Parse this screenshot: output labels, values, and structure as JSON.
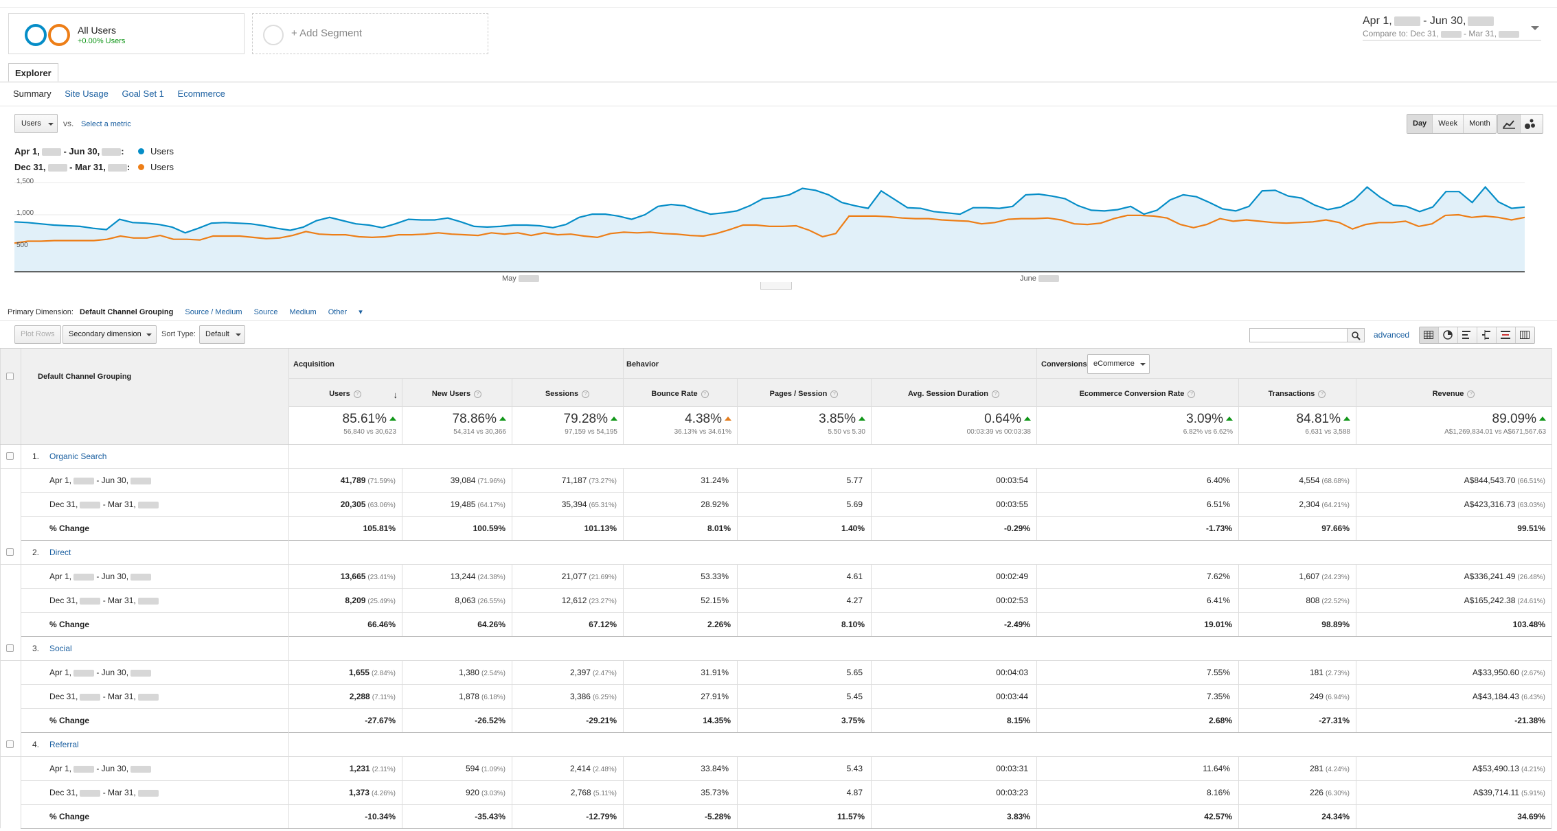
{
  "segments": {
    "all_users": {
      "title": "All Users",
      "subtitle": "+0.00% Users"
    },
    "add_segment": {
      "label": "+ Add Segment"
    }
  },
  "date": {
    "range_start": "Apr 1,",
    "range_sep": " - Jun 30,",
    "compare_prefix": "Compare to: Dec 31,",
    "compare_sep": " - Mar 31,"
  },
  "explorer_tab": "Explorer",
  "subtabs": [
    "Summary",
    "Site Usage",
    "Goal Set 1",
    "Ecommerce"
  ],
  "metric": {
    "selected": "Users",
    "vs": "vs.",
    "select_label": "Select a metric"
  },
  "granularity": [
    "Day",
    "Week",
    "Month"
  ],
  "legend": [
    {
      "range_a": "Apr 1,",
      "range_b": " - Jun 30,",
      "name": "Users",
      "color": "#058dc7"
    },
    {
      "range_a": "Dec 31,",
      "range_b": " - Mar 31,",
      "name": "Users",
      "color": "#ed7e17"
    }
  ],
  "chart_data": {
    "type": "line",
    "y_ticks": [
      "1,500",
      "1,000",
      "500"
    ],
    "ylim": [
      0,
      1500
    ],
    "x_ticks": [
      "May",
      "June"
    ],
    "series": [
      {
        "name": "Users",
        "color": "#058dc7",
        "fill": true,
        "values": [
          890,
          880,
          860,
          840,
          830,
          820,
          790,
          770,
          930,
          880,
          870,
          850,
          810,
          720,
          790,
          870,
          880,
          870,
          860,
          830,
          790,
          760,
          810,
          910,
          960,
          910,
          860,
          840,
          800,
          860,
          930,
          920,
          920,
          950,
          890,
          820,
          810,
          820,
          840,
          840,
          830,
          800,
          850,
          960,
          1010,
          1010,
          980,
          930,
          1000,
          1130,
          1160,
          1140,
          1070,
          1010,
          1030,
          1060,
          1140,
          1250,
          1270,
          1310,
          1410,
          1380,
          1310,
          1190,
          1140,
          1100,
          1370,
          1240,
          1110,
          1100,
          1050,
          1030,
          1010,
          1110,
          1110,
          1100,
          1130,
          1310,
          1320,
          1290,
          1250,
          1140,
          1070,
          1060,
          1080,
          1130,
          1010,
          1070,
          1230,
          1310,
          1280,
          1190,
          1090,
          1060,
          1130,
          1370,
          1380,
          1290,
          1260,
          1150,
          1080,
          1120,
          1230,
          1430,
          1270,
          1150,
          1130,
          1050,
          1120,
          1360,
          1360,
          1190,
          1430,
          1200,
          1100,
          1120
        ]
      },
      {
        "name": "Users",
        "color": "#ed7e17",
        "fill": false,
        "values": [
          560,
          590,
          590,
          600,
          600,
          600,
          600,
          620,
          670,
          640,
          640,
          680,
          620,
          620,
          610,
          670,
          670,
          670,
          650,
          630,
          640,
          680,
          740,
          700,
          690,
          690,
          660,
          650,
          660,
          690,
          690,
          700,
          720,
          700,
          690,
          680,
          720,
          700,
          720,
          680,
          720,
          690,
          700,
          670,
          650,
          710,
          730,
          720,
          730,
          710,
          700,
          680,
          670,
          710,
          770,
          840,
          840,
          820,
          820,
          830,
          760,
          660,
          710,
          980,
          980,
          980,
          970,
          950,
          940,
          940,
          920,
          910,
          900,
          860,
          880,
          930,
          940,
          940,
          950,
          920,
          860,
          850,
          870,
          940,
          990,
          990,
          980,
          950,
          850,
          800,
          850,
          940,
          900,
          920,
          900,
          880,
          870,
          880,
          890,
          920,
          880,
          780,
          850,
          880,
          880,
          900,
          820,
          860,
          990,
          1000,
          960,
          980,
          960,
          920,
          960
        ]
      }
    ]
  },
  "table_controls": {
    "primary_label": "Primary Dimension:",
    "dimensions": [
      "Default Channel Grouping",
      "Source / Medium",
      "Source",
      "Medium",
      "Other"
    ],
    "plot_rows": "Plot Rows",
    "secondary": "Secondary dimension",
    "sort_label": "Sort Type:",
    "sort_value": "Default",
    "advanced": "advanced"
  },
  "table": {
    "dim_header": "Default Channel Grouping",
    "groups": [
      "Acquisition",
      "Behavior",
      "Conversions"
    ],
    "conversion_select": "eCommerce",
    "columns": [
      "Users",
      "New Users",
      "Sessions",
      "Bounce Rate",
      "Pages / Session",
      "Avg. Session Duration",
      "Ecommerce Conversion Rate",
      "Transactions",
      "Revenue"
    ],
    "summary": [
      {
        "big": "85.61%",
        "small": "56,840 vs 30,623",
        "dir": "up"
      },
      {
        "big": "78.86%",
        "small": "54,314 vs 30,366",
        "dir": "up"
      },
      {
        "big": "79.28%",
        "small": "97,159 vs 54,195",
        "dir": "up"
      },
      {
        "big": "4.38%",
        "small": "36.13% vs 34.61%",
        "dir": "up-bad"
      },
      {
        "big": "3.85%",
        "small": "5.50 vs 5.30",
        "dir": "up"
      },
      {
        "big": "0.64%",
        "small": "00:03:39 vs 00:03:38",
        "dir": "up"
      },
      {
        "big": "3.09%",
        "small": "6.82% vs 6.62%",
        "dir": "up"
      },
      {
        "big": "84.81%",
        "small": "6,631 vs 3,588",
        "dir": "up"
      },
      {
        "big": "89.09%",
        "small": "A$1,269,834.01 vs A$671,567.63",
        "dir": "up"
      }
    ],
    "rows": [
      {
        "index": "1.",
        "name": "Organic Search",
        "cur": {
          "label_a": "Apr 1,",
          "label_b": " - Jun 30,",
          "cells": [
            [
              "41,789",
              "(71.59%)"
            ],
            [
              "39,084",
              "(71.96%)"
            ],
            [
              "71,187",
              "(73.27%)"
            ],
            [
              "31.24%",
              ""
            ],
            [
              "5.77",
              ""
            ],
            [
              "00:03:54",
              ""
            ],
            [
              "6.40%",
              ""
            ],
            [
              "4,554",
              "(68.68%)"
            ],
            [
              "A$844,543.70",
              "(66.51%)"
            ]
          ]
        },
        "prev": {
          "label_a": "Dec 31,",
          "label_b": " - Mar 31,",
          "cells": [
            [
              "20,305",
              "(63.06%)"
            ],
            [
              "19,485",
              "(64.17%)"
            ],
            [
              "35,394",
              "(65.31%)"
            ],
            [
              "28.92%",
              ""
            ],
            [
              "5.69",
              ""
            ],
            [
              "00:03:55",
              ""
            ],
            [
              "6.51%",
              ""
            ],
            [
              "2,304",
              "(64.21%)"
            ],
            [
              "A$423,316.73",
              "(63.03%)"
            ]
          ]
        },
        "change": {
          "label": "% Change",
          "cells": [
            "105.81%",
            "100.59%",
            "101.13%",
            "8.01%",
            "1.40%",
            "-0.29%",
            "-1.73%",
            "97.66%",
            "99.51%"
          ]
        }
      },
      {
        "index": "2.",
        "name": "Direct",
        "cur": {
          "label_a": "Apr 1,",
          "label_b": " - Jun 30,",
          "cells": [
            [
              "13,665",
              "(23.41%)"
            ],
            [
              "13,244",
              "(24.38%)"
            ],
            [
              "21,077",
              "(21.69%)"
            ],
            [
              "53.33%",
              ""
            ],
            [
              "4.61",
              ""
            ],
            [
              "00:02:49",
              ""
            ],
            [
              "7.62%",
              ""
            ],
            [
              "1,607",
              "(24.23%)"
            ],
            [
              "A$336,241.49",
              "(26.48%)"
            ]
          ]
        },
        "prev": {
          "label_a": "Dec 31,",
          "label_b": " - Mar 31,",
          "cells": [
            [
              "8,209",
              "(25.49%)"
            ],
            [
              "8,063",
              "(26.55%)"
            ],
            [
              "12,612",
              "(23.27%)"
            ],
            [
              "52.15%",
              ""
            ],
            [
              "4.27",
              ""
            ],
            [
              "00:02:53",
              ""
            ],
            [
              "6.41%",
              ""
            ],
            [
              "808",
              "(22.52%)"
            ],
            [
              "A$165,242.38",
              "(24.61%)"
            ]
          ]
        },
        "change": {
          "label": "% Change",
          "cells": [
            "66.46%",
            "64.26%",
            "67.12%",
            "2.26%",
            "8.10%",
            "-2.49%",
            "19.01%",
            "98.89%",
            "103.48%"
          ]
        }
      },
      {
        "index": "3.",
        "name": "Social",
        "cur": {
          "label_a": "Apr 1,",
          "label_b": " - Jun 30,",
          "cells": [
            [
              "1,655",
              "(2.84%)"
            ],
            [
              "1,380",
              "(2.54%)"
            ],
            [
              "2,397",
              "(2.47%)"
            ],
            [
              "31.91%",
              ""
            ],
            [
              "5.65",
              ""
            ],
            [
              "00:04:03",
              ""
            ],
            [
              "7.55%",
              ""
            ],
            [
              "181",
              "(2.73%)"
            ],
            [
              "A$33,950.60",
              "(2.67%)"
            ]
          ]
        },
        "prev": {
          "label_a": "Dec 31,",
          "label_b": " - Mar 31,",
          "cells": [
            [
              "2,288",
              "(7.11%)"
            ],
            [
              "1,878",
              "(6.18%)"
            ],
            [
              "3,386",
              "(6.25%)"
            ],
            [
              "27.91%",
              ""
            ],
            [
              "5.45",
              ""
            ],
            [
              "00:03:44",
              ""
            ],
            [
              "7.35%",
              ""
            ],
            [
              "249",
              "(6.94%)"
            ],
            [
              "A$43,184.43",
              "(6.43%)"
            ]
          ]
        },
        "change": {
          "label": "% Change",
          "cells": [
            "-27.67%",
            "-26.52%",
            "-29.21%",
            "14.35%",
            "3.75%",
            "8.15%",
            "2.68%",
            "-27.31%",
            "-21.38%"
          ]
        }
      },
      {
        "index": "4.",
        "name": "Referral",
        "cur": {
          "label_a": "Apr 1,",
          "label_b": " - Jun 30,",
          "cells": [
            [
              "1,231",
              "(2.11%)"
            ],
            [
              "594",
              "(1.09%)"
            ],
            [
              "2,414",
              "(2.48%)"
            ],
            [
              "33.84%",
              ""
            ],
            [
              "5.43",
              ""
            ],
            [
              "00:03:31",
              ""
            ],
            [
              "11.64%",
              ""
            ],
            [
              "281",
              "(4.24%)"
            ],
            [
              "A$53,490.13",
              "(4.21%)"
            ]
          ]
        },
        "prev": {
          "label_a": "Dec 31,",
          "label_b": " - Mar 31,",
          "cells": [
            [
              "1,373",
              "(4.26%)"
            ],
            [
              "920",
              "(3.03%)"
            ],
            [
              "2,768",
              "(5.11%)"
            ],
            [
              "35.73%",
              ""
            ],
            [
              "4.87",
              ""
            ],
            [
              "00:03:23",
              ""
            ],
            [
              "8.16%",
              ""
            ],
            [
              "226",
              "(6.30%)"
            ],
            [
              "A$39,714.11",
              "(5.91%)"
            ]
          ]
        },
        "change": {
          "label": "% Change",
          "cells": [
            "-10.34%",
            "-35.43%",
            "-12.79%",
            "-5.28%",
            "11.57%",
            "3.83%",
            "42.57%",
            "24.34%",
            "34.69%"
          ]
        }
      }
    ]
  }
}
